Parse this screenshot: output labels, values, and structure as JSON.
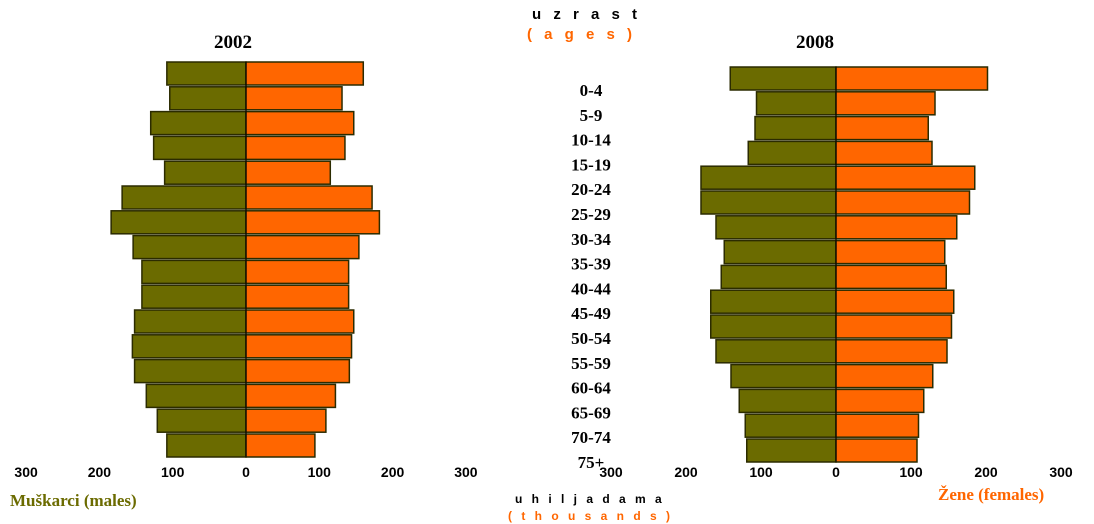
{
  "colors": {
    "male": "#6b6b00",
    "female": "#ff6600",
    "outline": "#2b2b00",
    "ages_label": "#ff6600",
    "males_label": "#6b6b00"
  },
  "labels": {
    "uzrast": "u z r a s t",
    "ages": "( a g e s )",
    "males": "Muškarci (males)",
    "females": "Žene (females)",
    "uhiljadama": "u h i l j a d a m a",
    "thousands": "( t h o u s a n d s )"
  },
  "chart_data": [
    {
      "type": "bar",
      "title": "2002",
      "categories": [
        "0-4",
        "5-9",
        "10-14",
        "15-19",
        "20-24",
        "25-29",
        "30-34",
        "35-39",
        "40-44",
        "45-49",
        "50-54",
        "55-59",
        "60-64",
        "65-69",
        "70-74",
        "75+"
      ],
      "series": [
        {
          "name": "Muškarci (males)",
          "values": [
            108,
            104,
            130,
            126,
            111,
            169,
            184,
            154,
            142,
            142,
            152,
            155,
            152,
            136,
            121,
            108
          ]
        },
        {
          "name": "Žene (females)",
          "values": [
            160,
            131,
            147,
            135,
            115,
            172,
            182,
            154,
            140,
            140,
            147,
            144,
            141,
            122,
            109,
            94
          ]
        }
      ],
      "xlim": [
        -300,
        300
      ],
      "xticklabels": [
        "300",
        "200",
        "100",
        "0",
        "100",
        "200",
        "300"
      ]
    },
    {
      "type": "bar",
      "title": "2008",
      "categories": [
        "0-4",
        "5-9",
        "10-14",
        "15-19",
        "20-24",
        "25-29",
        "30-34",
        "35-39",
        "40-44",
        "45-49",
        "50-54",
        "55-59",
        "60-64",
        "65-69",
        "70-74",
        "75+"
      ],
      "series": [
        {
          "name": "Muškarci (males)",
          "values": [
            141,
            106,
            108,
            117,
            180,
            180,
            160,
            149,
            153,
            167,
            167,
            160,
            140,
            129,
            121,
            119
          ]
        },
        {
          "name": "Žene (females)",
          "values": [
            202,
            132,
            123,
            128,
            185,
            178,
            161,
            145,
            147,
            157,
            154,
            148,
            129,
            117,
            110,
            108
          ]
        }
      ],
      "xlim": [
        -300,
        300
      ],
      "xticklabels": [
        "300",
        "200",
        "100",
        "0",
        "100",
        "200",
        "300"
      ]
    }
  ]
}
